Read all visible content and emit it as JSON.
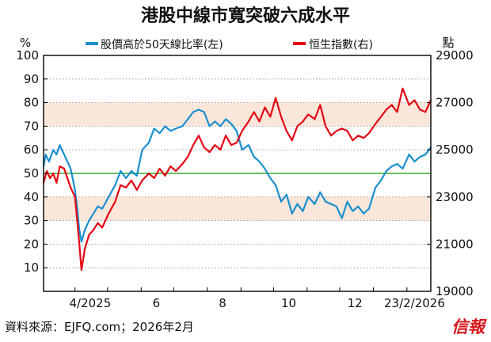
{
  "chart_data": {
    "type": "line",
    "title": "港股中線市寬突破六成水平",
    "left_axis": {
      "unit_label": "%",
      "ticks": [
        10,
        20,
        30,
        40,
        50,
        60,
        70,
        80,
        90,
        100
      ],
      "range": [
        0,
        100
      ]
    },
    "right_axis": {
      "unit_label": "點",
      "ticks": [
        "19000",
        "21000",
        "23000",
        "25000",
        "27000",
        "29000"
      ],
      "range": [
        19000,
        29000
      ]
    },
    "x_labels": [
      "4/2025",
      "6",
      "8",
      "10",
      "12",
      "23/2/2026"
    ],
    "bands": [
      {
        "from": 70,
        "to": 80,
        "color": "#fbe6da"
      },
      {
        "from": 30,
        "to": 40,
        "color": "#fbe6da"
      }
    ],
    "reference_line": {
      "value": 50,
      "color": "#3aa935"
    },
    "grid": "horizontal-dotted",
    "legend_position": "top-center",
    "x_date_range": [
      "2025-03-03",
      "2026-02-23"
    ],
    "series": [
      {
        "name": "股價高於50天線比率(左)",
        "axis": "left",
        "color": "#1a8fce",
        "points": [
          [
            "2025-03-03",
            53
          ],
          [
            "2025-03-05",
            58
          ],
          [
            "2025-03-08",
            55
          ],
          [
            "2025-03-12",
            60
          ],
          [
            "2025-03-15",
            58
          ],
          [
            "2025-03-18",
            62
          ],
          [
            "2025-03-22",
            58
          ],
          [
            "2025-03-25",
            55
          ],
          [
            "2025-03-28",
            52
          ],
          [
            "2025-04-01",
            43
          ],
          [
            "2025-04-03",
            35
          ],
          [
            "2025-04-05",
            26
          ],
          [
            "2025-04-07",
            21
          ],
          [
            "2025-04-10",
            26
          ],
          [
            "2025-04-14",
            30
          ],
          [
            "2025-04-18",
            33
          ],
          [
            "2025-04-22",
            36
          ],
          [
            "2025-04-26",
            35
          ],
          [
            "2025-05-02",
            40
          ],
          [
            "2025-05-08",
            45
          ],
          [
            "2025-05-13",
            51
          ],
          [
            "2025-05-18",
            48
          ],
          [
            "2025-05-23",
            51
          ],
          [
            "2025-05-28",
            49
          ],
          [
            "2025-06-02",
            60
          ],
          [
            "2025-06-08",
            63
          ],
          [
            "2025-06-13",
            69
          ],
          [
            "2025-06-18",
            67
          ],
          [
            "2025-06-23",
            70
          ],
          [
            "2025-06-28",
            68
          ],
          [
            "2025-07-03",
            69
          ],
          [
            "2025-07-09",
            70
          ],
          [
            "2025-07-14",
            73
          ],
          [
            "2025-07-19",
            76
          ],
          [
            "2025-07-24",
            77
          ],
          [
            "2025-07-29",
            76
          ],
          [
            "2025-08-03",
            70
          ],
          [
            "2025-08-08",
            72
          ],
          [
            "2025-08-13",
            70
          ],
          [
            "2025-08-18",
            73
          ],
          [
            "2025-08-23",
            71
          ],
          [
            "2025-08-28",
            68
          ],
          [
            "2025-09-02",
            60
          ],
          [
            "2025-09-08",
            62
          ],
          [
            "2025-09-13",
            57
          ],
          [
            "2025-09-18",
            55
          ],
          [
            "2025-09-23",
            52
          ],
          [
            "2025-09-28",
            48
          ],
          [
            "2025-10-03",
            45
          ],
          [
            "2025-10-08",
            38
          ],
          [
            "2025-10-13",
            41
          ],
          [
            "2025-10-18",
            33
          ],
          [
            "2025-10-23",
            37
          ],
          [
            "2025-10-28",
            34
          ],
          [
            "2025-11-02",
            40
          ],
          [
            "2025-11-08",
            37
          ],
          [
            "2025-11-13",
            42
          ],
          [
            "2025-11-18",
            38
          ],
          [
            "2025-11-23",
            37
          ],
          [
            "2025-11-28",
            36
          ],
          [
            "2025-12-03",
            31
          ],
          [
            "2025-12-08",
            38
          ],
          [
            "2025-12-13",
            34
          ],
          [
            "2025-12-18",
            36
          ],
          [
            "2025-12-23",
            33
          ],
          [
            "2025-12-28",
            35
          ],
          [
            "2026-01-03",
            44
          ],
          [
            "2026-01-08",
            47
          ],
          [
            "2026-01-13",
            51
          ],
          [
            "2026-01-18",
            53
          ],
          [
            "2026-01-23",
            54
          ],
          [
            "2026-01-28",
            52
          ],
          [
            "2026-02-03",
            58
          ],
          [
            "2026-02-08",
            55
          ],
          [
            "2026-02-13",
            57
          ],
          [
            "2026-02-18",
            58
          ],
          [
            "2026-02-23",
            61
          ]
        ]
      },
      {
        "name": "恒生指數(右)",
        "axis": "right",
        "color": "#e30613",
        "points": [
          [
            "2025-03-03",
            23600
          ],
          [
            "2025-03-06",
            24100
          ],
          [
            "2025-03-09",
            23800
          ],
          [
            "2025-03-12",
            24000
          ],
          [
            "2025-03-15",
            23600
          ],
          [
            "2025-03-18",
            24300
          ],
          [
            "2025-03-22",
            24200
          ],
          [
            "2025-03-25",
            23800
          ],
          [
            "2025-03-28",
            23400
          ],
          [
            "2025-04-01",
            23000
          ],
          [
            "2025-04-03",
            22000
          ],
          [
            "2025-04-05",
            21000
          ],
          [
            "2025-04-07",
            19900
          ],
          [
            "2025-04-10",
            20800
          ],
          [
            "2025-04-14",
            21400
          ],
          [
            "2025-04-18",
            21600
          ],
          [
            "2025-04-22",
            21900
          ],
          [
            "2025-04-26",
            21700
          ],
          [
            "2025-05-02",
            22300
          ],
          [
            "2025-05-08",
            22800
          ],
          [
            "2025-05-13",
            23500
          ],
          [
            "2025-05-18",
            23400
          ],
          [
            "2025-05-23",
            23700
          ],
          [
            "2025-05-28",
            23300
          ],
          [
            "2025-06-02",
            23700
          ],
          [
            "2025-06-08",
            24000
          ],
          [
            "2025-06-13",
            23800
          ],
          [
            "2025-06-18",
            24200
          ],
          [
            "2025-06-23",
            23900
          ],
          [
            "2025-06-28",
            24300
          ],
          [
            "2025-07-03",
            24100
          ],
          [
            "2025-07-09",
            24400
          ],
          [
            "2025-07-14",
            24700
          ],
          [
            "2025-07-19",
            25200
          ],
          [
            "2025-07-24",
            25600
          ],
          [
            "2025-07-29",
            25100
          ],
          [
            "2025-08-03",
            24900
          ],
          [
            "2025-08-08",
            25200
          ],
          [
            "2025-08-13",
            25000
          ],
          [
            "2025-08-18",
            25600
          ],
          [
            "2025-08-23",
            25200
          ],
          [
            "2025-08-28",
            25300
          ],
          [
            "2025-09-02",
            25800
          ],
          [
            "2025-09-08",
            26200
          ],
          [
            "2025-09-13",
            26600
          ],
          [
            "2025-09-18",
            26200
          ],
          [
            "2025-09-23",
            26800
          ],
          [
            "2025-09-28",
            26400
          ],
          [
            "2025-10-03",
            27200
          ],
          [
            "2025-10-08",
            26400
          ],
          [
            "2025-10-13",
            25800
          ],
          [
            "2025-10-18",
            25400
          ],
          [
            "2025-10-23",
            26000
          ],
          [
            "2025-10-28",
            26200
          ],
          [
            "2025-11-02",
            26500
          ],
          [
            "2025-11-08",
            26300
          ],
          [
            "2025-11-13",
            26900
          ],
          [
            "2025-11-18",
            26000
          ],
          [
            "2025-11-23",
            25600
          ],
          [
            "2025-11-28",
            25800
          ],
          [
            "2025-12-03",
            25900
          ],
          [
            "2025-12-08",
            25800
          ],
          [
            "2025-12-13",
            25400
          ],
          [
            "2025-12-18",
            25600
          ],
          [
            "2025-12-23",
            25500
          ],
          [
            "2025-12-28",
            25700
          ],
          [
            "2026-01-03",
            26100
          ],
          [
            "2026-01-08",
            26400
          ],
          [
            "2026-01-13",
            26700
          ],
          [
            "2026-01-18",
            26900
          ],
          [
            "2026-01-23",
            26600
          ],
          [
            "2026-01-28",
            27600
          ],
          [
            "2026-02-03",
            26900
          ],
          [
            "2026-02-08",
            27100
          ],
          [
            "2026-02-13",
            26700
          ],
          [
            "2026-02-18",
            26600
          ],
          [
            "2026-02-23",
            27100
          ]
        ]
      }
    ]
  },
  "source": "資料來源：EJFQ.com；2026年2月",
  "brand": "信報"
}
